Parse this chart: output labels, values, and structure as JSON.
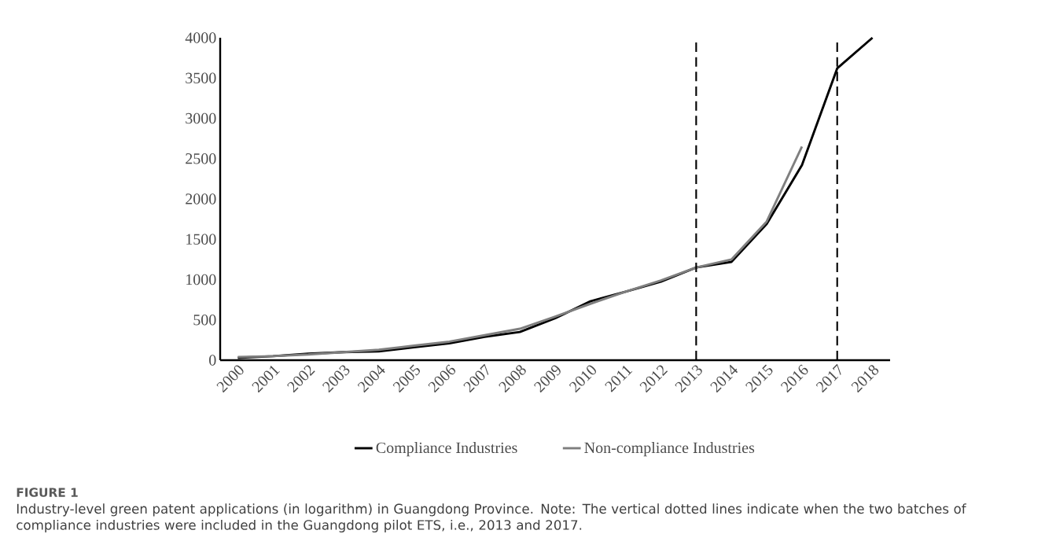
{
  "chart_data": {
    "type": "line",
    "categories": [
      "2000",
      "2001",
      "2002",
      "2003",
      "2004",
      "2005",
      "2006",
      "2007",
      "2008",
      "2009",
      "2010",
      "2011",
      "2012",
      "2013",
      "2014",
      "2015",
      "2016",
      "2017",
      "2018"
    ],
    "series": [
      {
        "name": "Compliance Industries",
        "color": "#000000",
        "values": [
          30,
          50,
          80,
          100,
          110,
          160,
          210,
          290,
          350,
          520,
          730,
          850,
          975,
          1150,
          1220,
          1690,
          2420,
          3620,
          4000
        ]
      },
      {
        "name": "Non-compliance Industries",
        "color": "#7f7f7f",
        "values": [
          40,
          50,
          70,
          100,
          130,
          180,
          230,
          310,
          390,
          540,
          700,
          850,
          990,
          1150,
          1250,
          1720,
          2650,
          null,
          null
        ]
      }
    ],
    "ylim": [
      0,
      4000
    ],
    "yticks": [
      0,
      500,
      1000,
      1500,
      2000,
      2500,
      3000,
      3500,
      4000
    ],
    "ref_lines": [
      {
        "axis": "x",
        "value": "2013",
        "line_style": "dashed",
        "color": "#000000"
      },
      {
        "axis": "x",
        "value": "2017",
        "line_style": "dashed",
        "color": "#000000"
      }
    ],
    "legend": "bottom",
    "marker": "none",
    "line_style": "solid",
    "annotations": [
      "FIGURE 1",
      "Industry-level green patent applications (in logarithm) in Guangdong Province. Note: The vertical dotted lines indicate when the two batches of compliance industries were included in the Guangdong pilot ETS, i.e., 2013 and 2017."
    ]
  }
}
